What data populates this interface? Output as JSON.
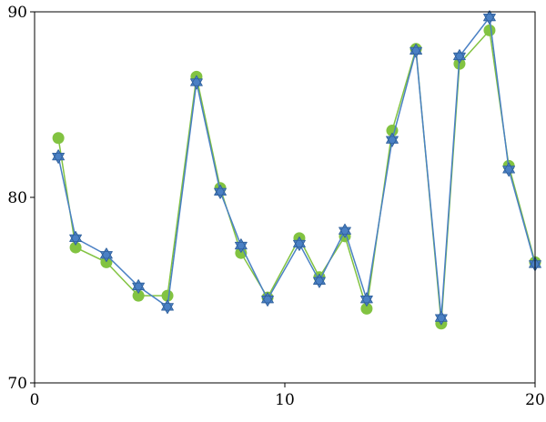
{
  "chart_data": {
    "type": "line",
    "x": [
      0.95,
      1.64,
      2.87,
      4.15,
      5.31,
      6.47,
      7.42,
      8.25,
      9.31,
      10.58,
      11.38,
      12.4,
      13.27,
      14.29,
      15.24,
      16.25,
      16.98,
      18.18,
      18.95,
      20.0
    ],
    "series": [
      {
        "color": "#82c341",
        "marker": "circle",
        "values": [
          83.2,
          77.3,
          76.5,
          74.7,
          74.7,
          86.5,
          80.5,
          77.0,
          74.6,
          77.8,
          75.7,
          77.9,
          74.0,
          83.6,
          88.0,
          73.2,
          87.2,
          89.0,
          81.7,
          76.5
        ]
      },
      {
        "color": "#4a80c4",
        "marker": "hexagram",
        "values": [
          82.2,
          77.8,
          76.9,
          75.2,
          74.1,
          86.2,
          80.3,
          77.4,
          74.5,
          77.5,
          75.5,
          78.2,
          74.5,
          83.1,
          87.9,
          73.5,
          87.6,
          89.7,
          81.5,
          76.4
        ]
      }
    ],
    "xlim": [
      0,
      20
    ],
    "xticks": [
      0,
      10,
      20
    ],
    "ylim": [
      70,
      90
    ],
    "yticks": [
      70,
      80,
      90
    ]
  }
}
